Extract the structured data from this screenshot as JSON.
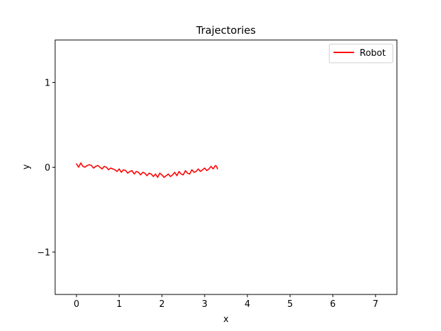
{
  "chart_data": {
    "type": "line",
    "title": "Trajectories",
    "xlabel": "x",
    "ylabel": "y",
    "xlim": [
      -0.5,
      7.5
    ],
    "ylim": [
      -1.5,
      1.5
    ],
    "xticks": [
      0,
      1,
      2,
      3,
      4,
      5,
      6,
      7
    ],
    "yticks": [
      1,
      0,
      -1
    ],
    "ytick_labels": [
      "1",
      "0",
      "−1"
    ],
    "grid": false,
    "legend": "top-right",
    "series": [
      {
        "name": "Robot",
        "color": "#ff0000",
        "x": [
          0.0,
          0.05,
          0.1,
          0.15,
          0.2,
          0.25,
          0.3,
          0.35,
          0.4,
          0.45,
          0.5,
          0.55,
          0.6,
          0.65,
          0.7,
          0.75,
          0.8,
          0.85,
          0.9,
          0.95,
          1.0,
          1.05,
          1.1,
          1.15,
          1.2,
          1.25,
          1.3,
          1.35,
          1.4,
          1.45,
          1.5,
          1.55,
          1.6,
          1.65,
          1.7,
          1.75,
          1.8,
          1.85,
          1.9,
          1.95,
          2.0,
          2.05,
          2.1,
          2.15,
          2.2,
          2.25,
          2.3,
          2.35,
          2.4,
          2.45,
          2.5,
          2.55,
          2.6,
          2.65,
          2.7,
          2.75,
          2.8,
          2.85,
          2.9,
          2.95,
          3.0,
          3.05,
          3.1,
          3.15,
          3.2,
          3.25,
          3.28,
          3.3
        ],
        "y": [
          0.04,
          0.0,
          0.05,
          0.01,
          0.0,
          0.02,
          0.03,
          0.02,
          -0.01,
          0.01,
          0.02,
          0.0,
          -0.02,
          0.01,
          0.0,
          -0.03,
          -0.01,
          -0.02,
          -0.03,
          -0.05,
          -0.02,
          -0.06,
          -0.03,
          -0.04,
          -0.07,
          -0.05,
          -0.04,
          -0.08,
          -0.05,
          -0.06,
          -0.09,
          -0.06,
          -0.07,
          -0.1,
          -0.07,
          -0.08,
          -0.11,
          -0.08,
          -0.12,
          -0.07,
          -0.09,
          -0.12,
          -0.1,
          -0.08,
          -0.11,
          -0.09,
          -0.06,
          -0.1,
          -0.05,
          -0.08,
          -0.09,
          -0.04,
          -0.07,
          -0.08,
          -0.03,
          -0.06,
          -0.05,
          -0.02,
          -0.05,
          -0.03,
          -0.01,
          -0.04,
          -0.02,
          0.01,
          -0.02,
          0.02,
          0.01,
          -0.02
        ]
      }
    ]
  }
}
